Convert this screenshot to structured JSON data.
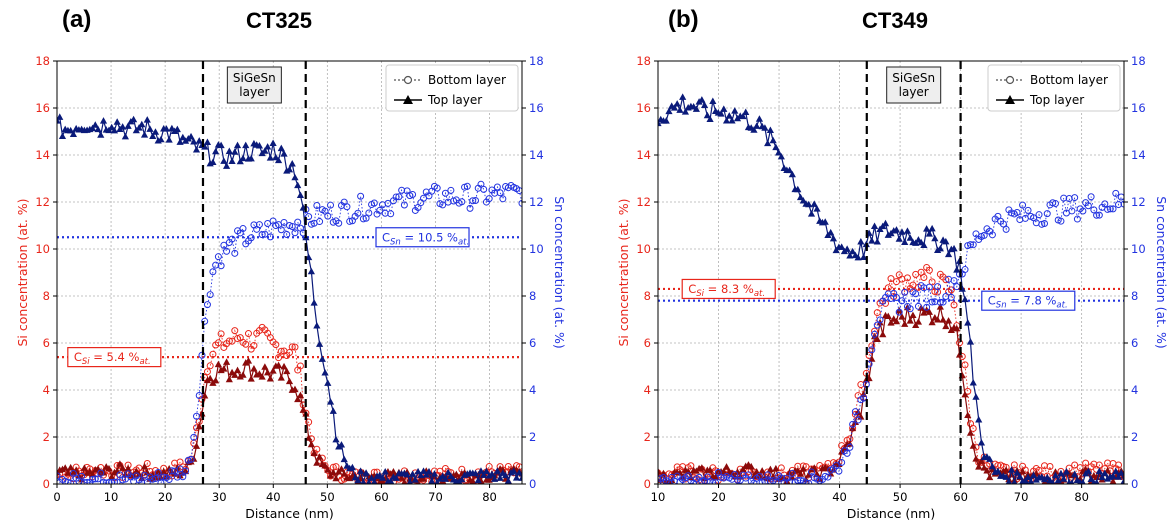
{
  "figure": {
    "panels": [
      {
        "label": "(a)",
        "title": "CT325"
      },
      {
        "label": "(b)",
        "title": "CT349"
      }
    ]
  },
  "chart_data": [
    {
      "type": "scatter",
      "panel_label": "(a)",
      "title": "CT325",
      "xlabel": "Distance (nm)",
      "ylabel_left": "Si concentration (at. %)",
      "ylabel_right": "Sn concentration (at. %)",
      "xlim": [
        0,
        86
      ],
      "ylim": [
        0,
        18
      ],
      "xticks": [
        0,
        10,
        20,
        30,
        40,
        50,
        60,
        70,
        80
      ],
      "yticks": [
        0,
        2,
        4,
        6,
        8,
        10,
        12,
        14,
        16,
        18
      ],
      "grid": true,
      "legend_position": "top-right",
      "legend": [
        {
          "label": "Bottom layer",
          "marker": "open-circle",
          "line": "dotted"
        },
        {
          "label": "Top layer",
          "marker": "filled-triangle",
          "line": "solid"
        }
      ],
      "region_box": "SiGeSn\nlayer",
      "boundaries": [
        27,
        46
      ],
      "h_lines": [
        {
          "label_prefix": "C",
          "label_sub": "Si",
          "label_value": " = 5.4 %",
          "label_unit_sub": "at.",
          "value": 5.4,
          "color": "#e8261b"
        },
        {
          "label_prefix": "C",
          "label_sub": "Sn",
          "label_value": " = 10.5 %",
          "label_unit_sub": "at.",
          "value": 10.5,
          "color": "#2233e0"
        }
      ],
      "series": [
        {
          "layer": "Bottom layer",
          "element": "Si",
          "color": "#e8261b",
          "marker": "open-circle",
          "x": [
            0,
            4,
            8,
            12,
            16,
            20,
            24,
            25,
            26,
            27,
            28,
            30,
            32,
            34,
            36,
            38,
            40,
            42,
            44,
            45,
            46,
            47,
            48,
            50,
            55,
            60,
            65,
            70,
            75,
            80,
            86
          ],
          "y": [
            0.4,
            0.5,
            0.6,
            0.5,
            0.6,
            0.5,
            0.8,
            1.2,
            2.5,
            4.2,
            5.4,
            5.9,
            6.1,
            6.3,
            6.1,
            6.2,
            5.9,
            5.8,
            5.6,
            4.6,
            3.2,
            2.0,
            1.2,
            0.6,
            0.3,
            0.3,
            0.4,
            0.4,
            0.4,
            0.5,
            0.5
          ]
        },
        {
          "layer": "Top layer",
          "element": "Si",
          "color": "#8b0a0a",
          "marker": "filled-triangle",
          "x": [
            0,
            4,
            8,
            12,
            16,
            20,
            24,
            25,
            26,
            27,
            28,
            30,
            32,
            34,
            36,
            38,
            40,
            42,
            44,
            45,
            46,
            47,
            48,
            50,
            55,
            60,
            65,
            70,
            75,
            80,
            86
          ],
          "y": [
            0.5,
            0.4,
            0.5,
            0.6,
            0.5,
            0.4,
            0.6,
            1.0,
            2.0,
            3.5,
            4.6,
            4.9,
            4.8,
            5.0,
            4.9,
            4.8,
            4.7,
            4.6,
            4.3,
            3.6,
            2.6,
            1.8,
            1.1,
            0.5,
            0.3,
            0.3,
            0.3,
            0.3,
            0.4,
            0.4,
            0.4
          ]
        },
        {
          "layer": "Bottom layer",
          "element": "Sn",
          "color": "#2233e0",
          "marker": "open-circle",
          "x": [
            0,
            4,
            8,
            12,
            16,
            20,
            24,
            25,
            26,
            27,
            28,
            29,
            30,
            32,
            34,
            36,
            38,
            40,
            42,
            44,
            46,
            48,
            50,
            55,
            60,
            65,
            70,
            75,
            80,
            86
          ],
          "y": [
            0.1,
            0.2,
            0.2,
            0.2,
            0.2,
            0.3,
            0.6,
            1.5,
            3.5,
            6.0,
            8.2,
            9.2,
            9.7,
            10.1,
            10.4,
            10.6,
            10.7,
            10.9,
            11.0,
            11.1,
            11.2,
            11.4,
            11.5,
            11.7,
            11.9,
            12.1,
            12.2,
            12.2,
            12.3,
            12.4
          ]
        },
        {
          "layer": "Top layer",
          "element": "Sn",
          "color": "#0a1a7a",
          "marker": "filled-triangle",
          "x": [
            0,
            2,
            4,
            6,
            8,
            10,
            12,
            14,
            16,
            18,
            20,
            22,
            24,
            26,
            28,
            30,
            32,
            34,
            36,
            38,
            40,
            42,
            44,
            45,
            46,
            47,
            48,
            50,
            52,
            54,
            56,
            60,
            65,
            70,
            75,
            80,
            86
          ],
          "y": [
            15.2,
            15.1,
            15.3,
            15.4,
            15.2,
            15.5,
            15.2,
            15.1,
            15.2,
            15.0,
            15.0,
            14.8,
            14.5,
            14.3,
            14.1,
            14.0,
            13.9,
            14.1,
            14.2,
            14.1,
            14.3,
            13.9,
            13.4,
            12.4,
            10.5,
            8.9,
            7.0,
            4.5,
            1.8,
            0.6,
            0.3,
            0.3,
            0.3,
            0.3,
            0.3,
            0.4,
            0.3
          ]
        }
      ]
    },
    {
      "type": "scatter",
      "panel_label": "(b)",
      "title": "CT349",
      "xlabel": "Distance (nm)",
      "ylabel_left": "Si concentration (at. %)",
      "ylabel_right": "Sn concentration (at. %)",
      "xlim": [
        10,
        87
      ],
      "ylim": [
        0,
        18
      ],
      "xticks": [
        10,
        20,
        30,
        40,
        50,
        60,
        70,
        80
      ],
      "yticks": [
        0,
        2,
        4,
        6,
        8,
        10,
        12,
        14,
        16,
        18
      ],
      "grid": true,
      "legend_position": "top-right",
      "legend": [
        {
          "label": "Bottom layer",
          "marker": "open-circle",
          "line": "dotted"
        },
        {
          "label": "Top layer",
          "marker": "filled-triangle",
          "line": "solid"
        }
      ],
      "region_box": "SiGeSn\nlayer",
      "boundaries": [
        44.5,
        60
      ],
      "h_lines": [
        {
          "label_prefix": "C",
          "label_sub": "Si",
          "label_value": " = 8.3 %",
          "label_unit_sub": "at.",
          "value": 8.3,
          "color": "#e8261b"
        },
        {
          "label_prefix": "C",
          "label_sub": "Sn",
          "label_value": " = 7.8 %",
          "label_unit_sub": "at.",
          "value": 7.8,
          "color": "#2233e0"
        }
      ],
      "series": [
        {
          "layer": "Bottom layer",
          "element": "Si",
          "color": "#e8261b",
          "marker": "open-circle",
          "x": [
            10,
            15,
            20,
            25,
            30,
            35,
            38,
            40,
            42,
            44,
            45,
            46,
            48,
            50,
            52,
            54,
            56,
            58,
            59,
            60,
            61,
            62,
            63,
            65,
            70,
            75,
            80,
            87
          ],
          "y": [
            0.4,
            0.5,
            0.4,
            0.5,
            0.4,
            0.5,
            0.6,
            1.2,
            2.4,
            4.2,
            5.6,
            7.2,
            8.2,
            8.6,
            8.7,
            8.8,
            8.6,
            8.3,
            7.6,
            6.0,
            4.2,
            2.2,
            1.2,
            0.6,
            0.5,
            0.5,
            0.6,
            0.6
          ]
        },
        {
          "layer": "Top layer",
          "element": "Si",
          "color": "#8b0a0a",
          "marker": "filled-triangle",
          "x": [
            10,
            15,
            20,
            25,
            30,
            35,
            38,
            40,
            42,
            44,
            45,
            46,
            48,
            50,
            52,
            54,
            56,
            58,
            59,
            60,
            61,
            62,
            63,
            65,
            70,
            75,
            80,
            87
          ],
          "y": [
            0.3,
            0.4,
            0.5,
            0.6,
            0.4,
            0.4,
            0.5,
            1.0,
            2.0,
            3.6,
            5.0,
            6.3,
            6.9,
            7.1,
            7.2,
            7.2,
            7.3,
            7.1,
            6.6,
            5.5,
            3.6,
            1.8,
            0.9,
            0.4,
            0.3,
            0.3,
            0.4,
            0.3
          ]
        },
        {
          "layer": "Bottom layer",
          "element": "Sn",
          "color": "#2233e0",
          "marker": "open-circle",
          "x": [
            10,
            15,
            20,
            25,
            30,
            35,
            38,
            40,
            42,
            44,
            45,
            46,
            48,
            50,
            52,
            54,
            56,
            58,
            59,
            60,
            61,
            62,
            63,
            65,
            67,
            70,
            75,
            80,
            87
          ],
          "y": [
            0.1,
            0.1,
            0.2,
            0.1,
            0.2,
            0.2,
            0.4,
            0.8,
            2.0,
            4.0,
            5.6,
            7.0,
            7.6,
            7.8,
            7.9,
            8.0,
            8.1,
            8.3,
            8.6,
            9.0,
            9.6,
            10.2,
            10.6,
            11.0,
            11.3,
            11.4,
            11.6,
            11.8,
            12.0
          ]
        },
        {
          "layer": "Top layer",
          "element": "Sn",
          "color": "#0a1a7a",
          "marker": "filled-triangle",
          "x": [
            10,
            12,
            14,
            16,
            18,
            20,
            22,
            24,
            26,
            28,
            30,
            32,
            34,
            36,
            38,
            40,
            42,
            44,
            46,
            48,
            50,
            52,
            54,
            56,
            58,
            60,
            61,
            62,
            63,
            64,
            66,
            70,
            75,
            80,
            87
          ],
          "y": [
            15.6,
            15.9,
            16.2,
            16.1,
            15.8,
            15.9,
            15.8,
            15.6,
            15.4,
            14.8,
            14.2,
            13.2,
            12.2,
            11.4,
            10.8,
            10.1,
            9.9,
            10.0,
            10.6,
            10.8,
            10.7,
            10.6,
            10.5,
            10.4,
            10.2,
            9.2,
            7.2,
            4.8,
            2.6,
            1.2,
            0.4,
            0.3,
            0.3,
            0.3,
            0.3
          ]
        }
      ]
    }
  ]
}
